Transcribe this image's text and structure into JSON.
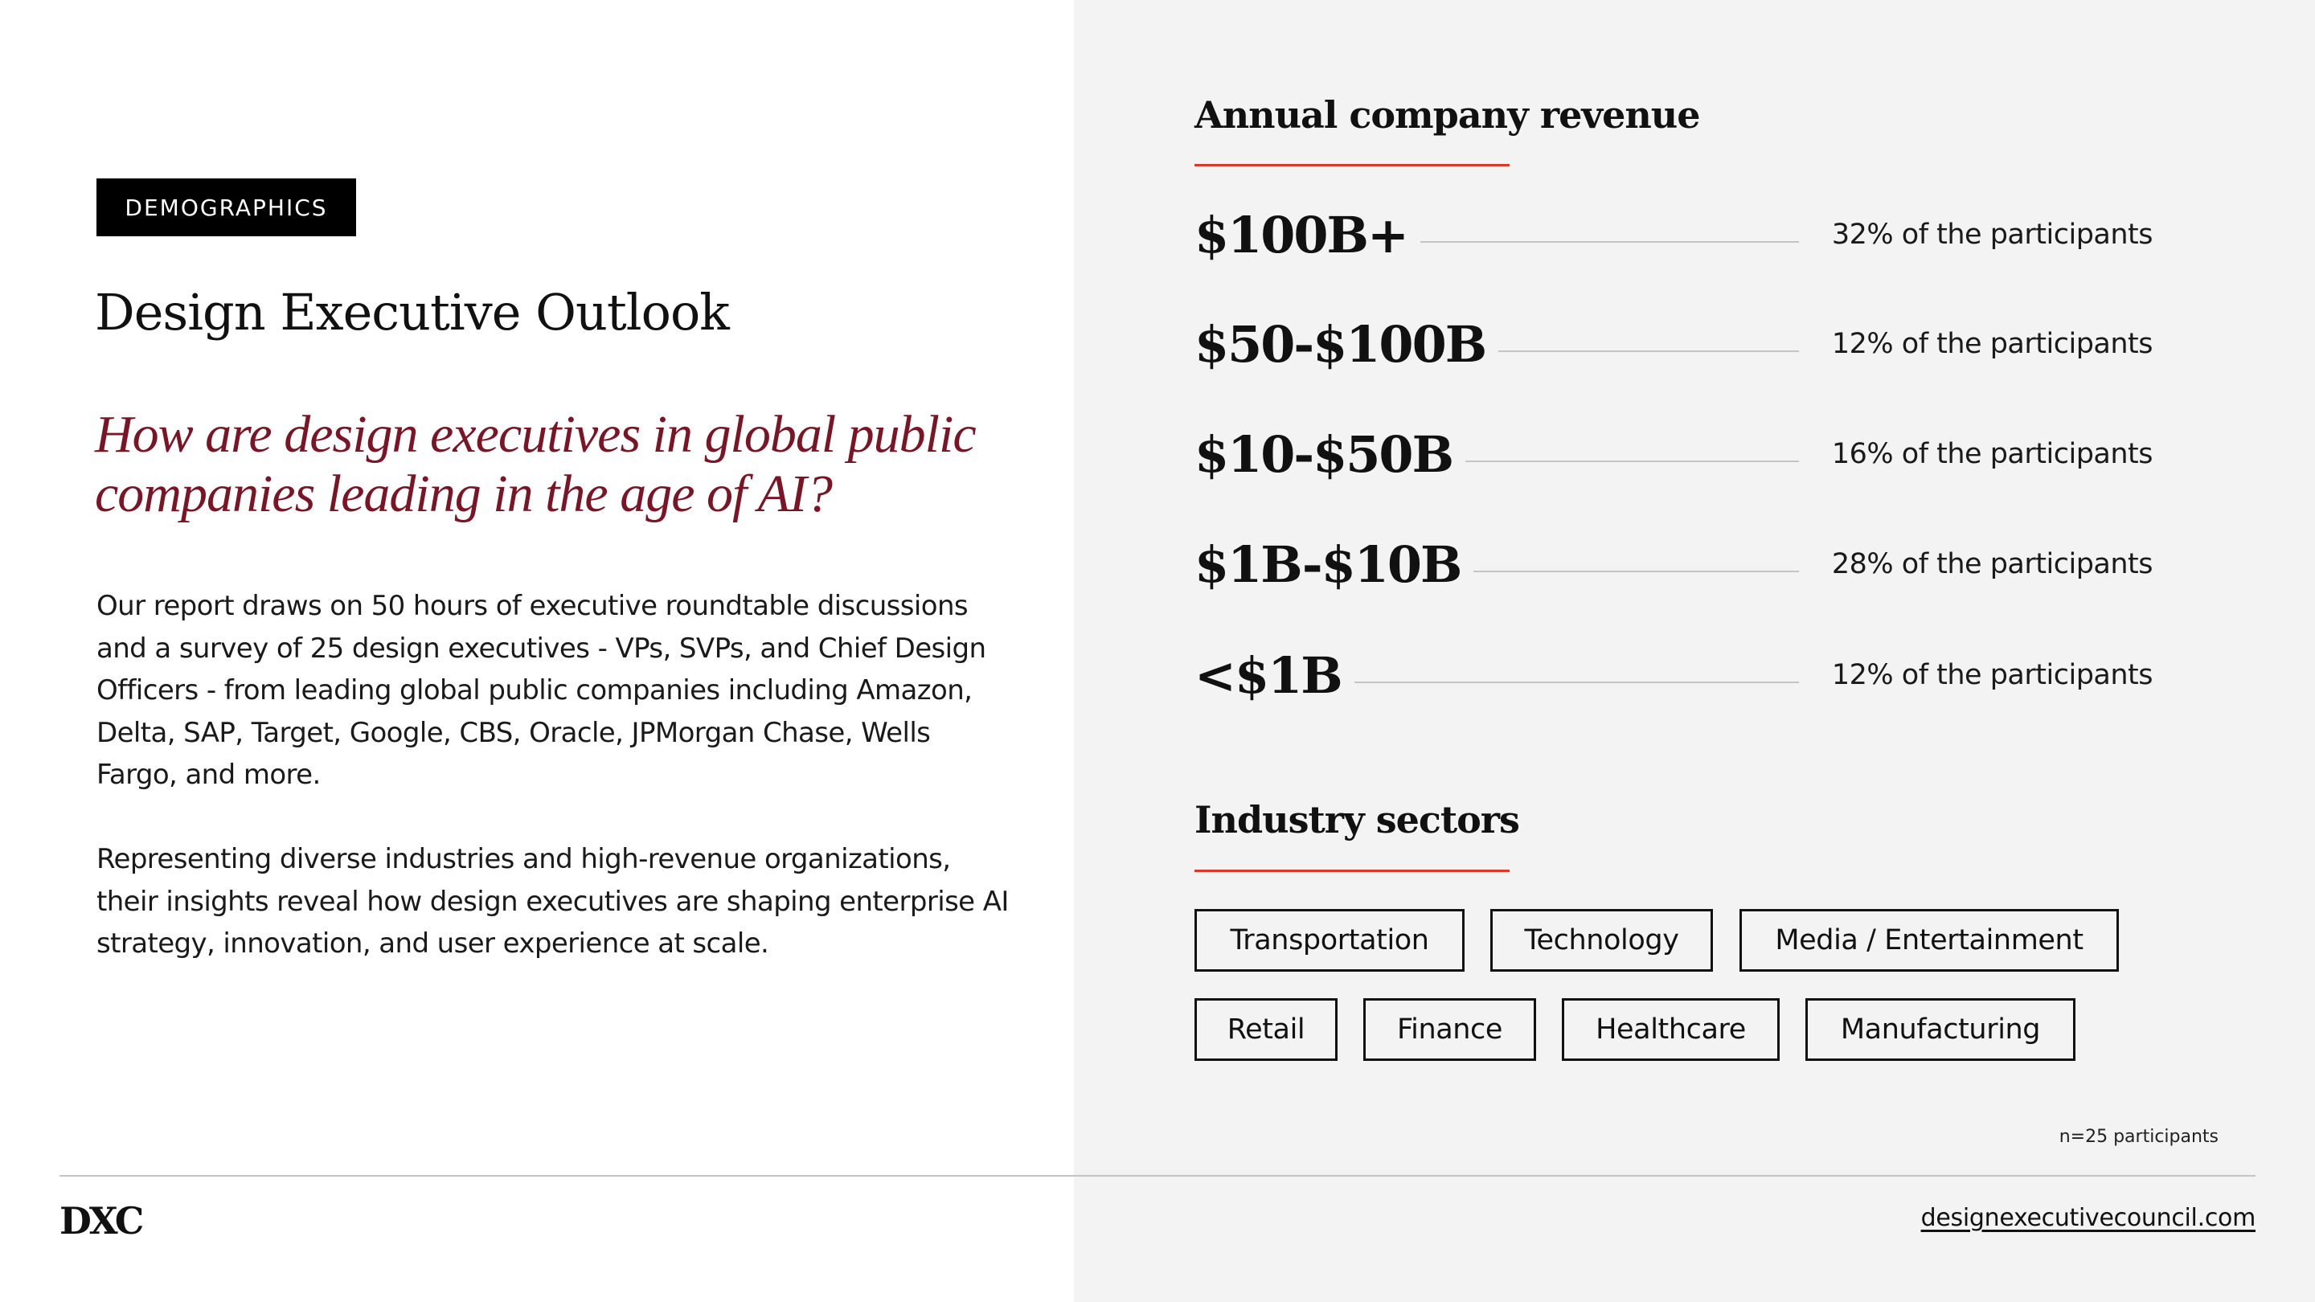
{
  "left": {
    "badge": "DEMOGRAPHICS",
    "title": "Design Executive Outlook",
    "question": "How are design executives in global public companies leading in the age of AI?",
    "paragraphs": [
      "Our report draws on 50 hours of executive roundtable discussions and a survey of 25 design executives - VPs, SVPs, and Chief Design Officers - from leading global public companies including Amazon, Delta, SAP, Target, Google, CBS, Oracle, JPMorgan Chase, Wells Fargo, and more.",
      "Representing diverse industries and high-revenue organizations, their insights reveal how design executives are shaping enterprise AI strategy, innovation, and user experience at scale."
    ]
  },
  "revenue": {
    "heading": "Annual company revenue",
    "rows": [
      {
        "label": "$100B+",
        "share": "32% of the participants"
      },
      {
        "label": "$50-$100B",
        "share": "12% of the participants"
      },
      {
        "label": "$10-$50B",
        "share": "16% of the participants"
      },
      {
        "label": "$1B-$10B",
        "share": "28% of the participants"
      },
      {
        "label": "<$1B",
        "share": "12% of the participants"
      }
    ]
  },
  "sectors": {
    "heading": "Industry sectors",
    "items": [
      "Transportation",
      "Technology",
      "Media / Entertainment",
      "Retail",
      "Finance",
      "Healthcare",
      "Manufacturing"
    ]
  },
  "sample_note": "n=25 participants",
  "footer": {
    "logo": "DXC",
    "link": "designexecutivecouncil.com"
  },
  "colors": {
    "accent_red": "#d93a2c",
    "question_maroon": "#7b1525",
    "panel_gray": "#f3f3f3"
  }
}
